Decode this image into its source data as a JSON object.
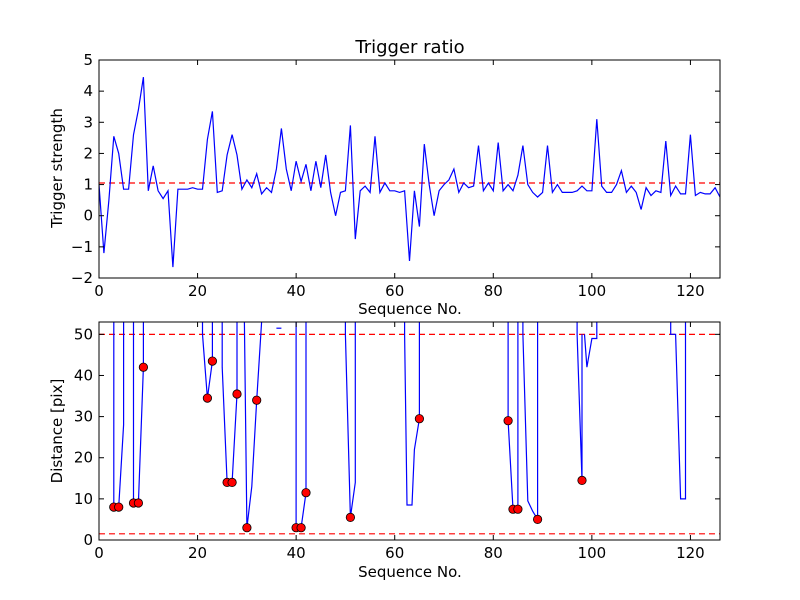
{
  "chart_data": [
    {
      "type": "line",
      "title": "Trigger ratio",
      "xlabel": "Sequence No.",
      "ylabel": "Trigger strength",
      "xlim": [
        0,
        126
      ],
      "ylim": [
        -2,
        5
      ],
      "xticks": [
        "0",
        "20",
        "40",
        "60",
        "80",
        "100",
        "120"
      ],
      "yticks": [
        "−2",
        "−1",
        "0",
        "1",
        "2",
        "3",
        "4",
        "5"
      ],
      "threshold": 1.05,
      "threshold_color": "#ff0000",
      "line_color": "#0000ff",
      "grid": false,
      "series": [
        {
          "x": [
            0,
            1,
            2,
            3,
            4,
            5,
            6,
            7,
            8,
            9,
            10,
            11,
            12,
            13,
            14,
            15,
            16,
            17,
            18,
            19,
            20,
            21,
            22,
            23,
            24,
            25,
            26,
            27,
            28,
            29,
            30,
            31,
            32,
            33,
            34,
            35,
            36,
            37,
            38,
            39,
            40,
            41,
            42,
            43,
            44,
            45,
            46,
            47,
            48,
            49,
            50,
            51,
            52,
            53,
            54,
            55,
            56,
            57,
            58,
            59,
            60,
            61,
            62,
            63,
            64,
            65,
            66,
            67,
            68,
            69,
            70,
            71,
            72,
            73,
            74,
            75,
            76,
            77,
            78,
            79,
            80,
            81,
            82,
            83,
            84,
            85,
            86,
            87,
            88,
            89,
            90,
            91,
            92,
            93,
            94,
            95,
            96,
            97,
            98,
            99,
            100,
            101,
            102,
            103,
            104,
            105,
            106,
            107,
            108,
            109,
            110,
            111,
            112,
            113,
            114,
            115,
            116,
            117,
            118,
            119,
            120,
            121,
            122,
            123,
            124,
            125,
            126
          ],
          "values": [
            1.0,
            -1.2,
            0.5,
            2.55,
            2.0,
            0.85,
            0.85,
            2.6,
            3.4,
            4.45,
            0.8,
            1.6,
            0.8,
            0.55,
            0.8,
            -1.65,
            0.85,
            0.85,
            0.85,
            0.9,
            0.85,
            0.85,
            2.45,
            3.35,
            0.75,
            0.8,
            1.95,
            2.6,
            1.95,
            0.85,
            1.15,
            0.9,
            1.35,
            0.7,
            0.9,
            0.75,
            1.5,
            2.8,
            1.5,
            0.8,
            1.75,
            1.1,
            1.65,
            0.8,
            1.75,
            0.9,
            1.95,
            0.75,
            0.0,
            0.75,
            0.8,
            2.9,
            -0.75,
            0.8,
            0.95,
            0.75,
            2.55,
            0.75,
            1.05,
            0.8,
            0.8,
            0.75,
            0.8,
            -1.45,
            0.8,
            -0.35,
            2.3,
            1.0,
            0.0,
            0.8,
            1.0,
            1.15,
            1.5,
            0.75,
            1.05,
            0.9,
            0.95,
            2.25,
            0.8,
            1.05,
            0.8,
            2.35,
            0.8,
            1.0,
            0.8,
            1.3,
            2.25,
            1.0,
            0.75,
            0.6,
            0.75,
            2.25,
            0.75,
            1.0,
            0.75,
            0.75,
            0.75,
            0.8,
            0.95,
            0.8,
            0.8,
            3.1,
            0.95,
            0.75,
            0.75,
            1.0,
            1.45,
            0.75,
            0.95,
            0.75,
            0.2,
            0.9,
            0.65,
            0.8,
            0.75,
            2.4,
            0.65,
            0.95,
            0.7,
            0.7,
            2.6,
            0.65,
            0.75,
            0.7,
            0.7,
            0.9,
            0.6
          ]
        }
      ]
    },
    {
      "type": "line",
      "title": "",
      "xlabel": "Sequence No.",
      "ylabel": "Distance [pix]",
      "xlim": [
        0,
        126
      ],
      "ylim": [
        0,
        53
      ],
      "xticks": [
        "0",
        "20",
        "40",
        "60",
        "80",
        "100",
        "120"
      ],
      "yticks": [
        "0",
        "10",
        "20",
        "30",
        "40",
        "50"
      ],
      "thresholds": [
        50,
        1.5
      ],
      "threshold_color": "#ff0000",
      "line_color": "#0000ff",
      "marker_color": "#ff0000",
      "grid": false,
      "series": [
        {
          "segments": [
            [
              [
                3,
                53
              ],
              [
                3,
                8
              ],
              [
                4,
                8
              ],
              [
                5,
                28
              ],
              [
                5,
                53
              ]
            ],
            [
              [
                7,
                53
              ],
              [
                7,
                9
              ],
              [
                8,
                9
              ],
              [
                9,
                42
              ],
              [
                9,
                53
              ]
            ],
            [
              [
                21,
                53
              ],
              [
                21,
                50
              ],
              [
                22,
                34.5
              ],
              [
                23,
                43.5
              ],
              [
                23,
                53
              ]
            ],
            [
              [
                25,
                53
              ],
              [
                25,
                42
              ],
              [
                26,
                14
              ],
              [
                27,
                14
              ],
              [
                28,
                35.5
              ],
              [
                28,
                53
              ]
            ],
            [
              [
                29.5,
                53
              ],
              [
                30,
                3
              ],
              [
                31,
                13
              ],
              [
                32,
                34
              ],
              [
                33,
                53
              ]
            ],
            [
              [
                36,
                51.5
              ],
              [
                37,
                51.5
              ]
            ],
            [
              [
                40,
                53
              ],
              [
                40,
                3
              ],
              [
                41,
                3
              ],
              [
                42,
                11.5
              ],
              [
                42,
                53
              ]
            ],
            [
              [
                50,
                53
              ],
              [
                50,
                50
              ],
              [
                51,
                5.5
              ],
              [
                52,
                14
              ],
              [
                52,
                53
              ]
            ],
            [
              [
                62,
                53
              ],
              [
                62,
                50
              ],
              [
                62.5,
                8.5
              ],
              [
                63.5,
                8.5
              ],
              [
                64,
                22
              ],
              [
                65,
                29.5
              ],
              [
                65,
                53
              ]
            ],
            [
              [
                83,
                53
              ],
              [
                83,
                29
              ],
              [
                84,
                7.5
              ],
              [
                85,
                7.5
              ],
              [
                85,
                53
              ]
            ],
            [
              [
                86,
                53
              ],
              [
                86,
                50
              ],
              [
                87,
                9.5
              ],
              [
                88,
                7
              ],
              [
                89,
                5
              ],
              [
                89,
                53
              ]
            ],
            [
              [
                97,
                53
              ],
              [
                97,
                50
              ],
              [
                98,
                14.5
              ],
              [
                98,
                50
              ]
            ],
            [
              [
                98.5,
                50
              ],
              [
                99,
                42
              ],
              [
                100,
                49
              ],
              [
                101,
                49
              ],
              [
                101,
                53
              ]
            ],
            [
              [
                116,
                53
              ],
              [
                116,
                50
              ],
              [
                117,
                50
              ],
              [
                118,
                10
              ],
              [
                119,
                10
              ],
              [
                119,
                53
              ]
            ]
          ],
          "markers": [
            [
              3,
              8
            ],
            [
              4,
              8
            ],
            [
              7,
              9
            ],
            [
              8,
              9
            ],
            [
              9,
              42
            ],
            [
              22,
              34.5
            ],
            [
              23,
              43.5
            ],
            [
              26,
              14
            ],
            [
              27,
              14
            ],
            [
              28,
              35.5
            ],
            [
              30,
              3
            ],
            [
              32,
              34
            ],
            [
              40,
              3
            ],
            [
              41,
              3
            ],
            [
              42,
              11.5
            ],
            [
              51,
              5.5
            ],
            [
              65,
              29.5
            ],
            [
              83,
              29
            ],
            [
              84,
              7.5
            ],
            [
              85,
              7.5
            ],
            [
              89,
              5
            ],
            [
              98,
              14.5
            ]
          ]
        }
      ]
    }
  ]
}
